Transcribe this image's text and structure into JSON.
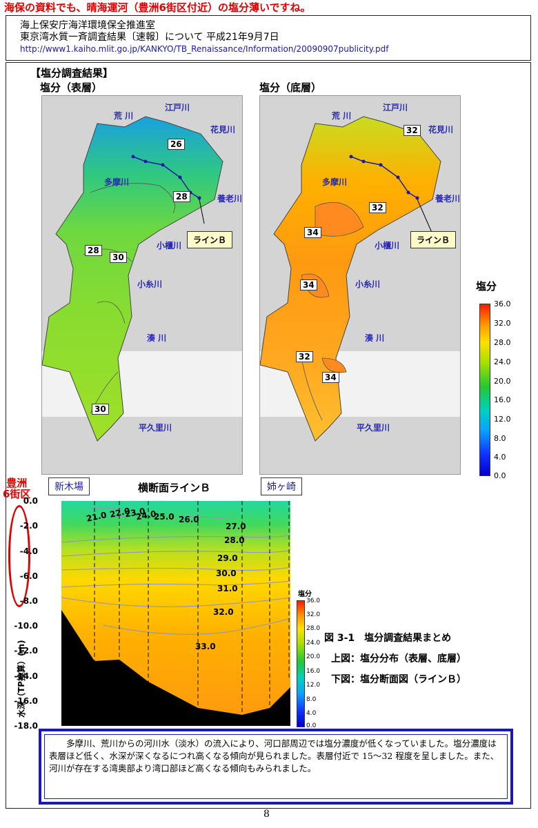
{
  "top_note": "海保の資料でも、晴海運河（豊洲6街区付近）の塩分薄いですね。",
  "header": {
    "line1": "海上保安庁海洋環境保全推進室",
    "line2": "東京湾水質一斉調査結果〔速報〕について 平成21年9月7日",
    "url": "http://www1.kaiho.mlit.go.jp/KANKYO/TB_Renaissance/Information/20090907publicity.pdf"
  },
  "section_title": "【塩分調査結果】",
  "maps": {
    "surface_title": "塩分（表層）",
    "bottom_title": "塩分（底層）",
    "place_names": {
      "arakawa": "荒 川",
      "edogawa": "江戸川",
      "hanamigawa": "花見川",
      "tamagawa": "多摩川",
      "yorogawa": "養老川",
      "obitsugawa": "小櫃川",
      "koitogawa": "小糸川",
      "minatogawa": "湊 川",
      "heikurigawa": "平久里川"
    },
    "line_b_label": "ラインＢ",
    "surface_contours": [
      "26",
      "28",
      "28",
      "30",
      "30"
    ],
    "bottom_contours": [
      "32",
      "32",
      "34",
      "34",
      "32",
      "34"
    ]
  },
  "colorbar": {
    "title": "塩分",
    "ticks": [
      "36.0",
      "32.0",
      "28.0",
      "24.0",
      "20.0",
      "16.0",
      "12.0",
      "8.0",
      "4.0",
      "0.0"
    ]
  },
  "cross_section": {
    "annotation": "豊洲\n6街区",
    "left_station": "新木場",
    "title": "横断面ラインＢ",
    "right_station": "姉ヶ崎",
    "y_axis_label": "水深（TP換算）(m)",
    "y_ticks": [
      "0.0",
      "-2.0",
      "-4.0",
      "-6.0",
      "-8.0",
      "-10.0",
      "-12.0",
      "-14.0",
      "-16.0",
      "-18.0"
    ],
    "contour_labels": [
      "21.0",
      "22.0",
      "23.0",
      "24.0",
      "25.0",
      "26.0",
      "27.0",
      "28.0",
      "29.0",
      "30.0",
      "31.0",
      "32.0",
      "33.0"
    ],
    "small_colorbar_title": "塩分",
    "small_colorbar_ticks": [
      "36.0",
      "32.0",
      "28.0",
      "24.0",
      "20.0",
      "16.0",
      "12.0",
      "8.0",
      "4.0",
      "0.0"
    ]
  },
  "figure_caption": {
    "title": "図 3-1　塩分調査結果まとめ",
    "line1": "上図：塩分分布（表層、底層）",
    "line2": "下図：塩分断面図（ラインＢ）"
  },
  "summary": "多摩川、荒川からの河川水（淡水）の流入により、河口部周辺では塩分濃度が低くなっていました。塩分濃度は表層ほど低く、水深が深くなるにつれ高くなる傾向が見られました。表層付近で 15～32 程度を呈しました。また、河川が存在する湾奥部より湾口部ほど高くなる傾向もみられました。",
  "page_number": "8"
}
